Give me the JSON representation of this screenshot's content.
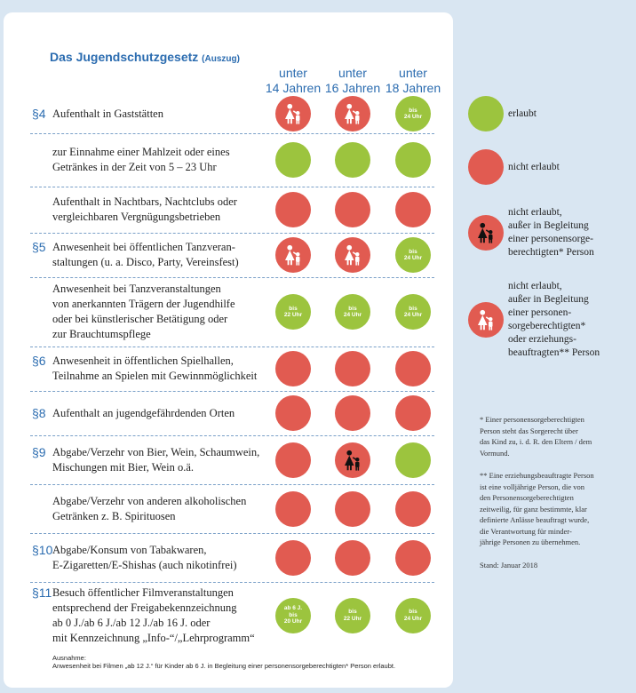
{
  "title": "Das Jugendschutzgesetz",
  "subtitle": "(Auszug)",
  "columns": [
    [
      "unter",
      "14 Jahren"
    ],
    [
      "unter",
      "16 Jahren"
    ],
    [
      "unter",
      "18 Jahren"
    ]
  ],
  "rows": [
    {
      "section": "§4",
      "lines": [
        "Aufenthalt in Gaststätten"
      ],
      "cells": [
        {
          "status": "escort-both"
        },
        {
          "status": "escort-both"
        },
        {
          "status": "allowed",
          "label": [
            "bis",
            "24 Uhr"
          ]
        }
      ]
    },
    {
      "lines": [
        "zur Einnahme einer Mahlzeit oder eines",
        "Getränkes in der Zeit von 5 – 23 Uhr"
      ],
      "cells": [
        {
          "status": "allowed"
        },
        {
          "status": "allowed"
        },
        {
          "status": "allowed"
        }
      ]
    },
    {
      "lines": [
        "Aufenthalt in Nachtbars, Nachtclubs oder",
        "vergleichbaren Vergnügungsbetrieben"
      ],
      "cells": [
        {
          "status": "denied"
        },
        {
          "status": "denied"
        },
        {
          "status": "denied"
        }
      ]
    },
    {
      "section": "§5",
      "lines": [
        "Anwesenheit bei öffentlichen Tanzveran-",
        "staltungen (u. a. Disco, Party, Vereinsfest)"
      ],
      "cells": [
        {
          "status": "escort-both"
        },
        {
          "status": "escort-both"
        },
        {
          "status": "allowed",
          "label": [
            "bis",
            "24 Uhr"
          ]
        }
      ]
    },
    {
      "lines": [
        "Anwesenheit bei Tanzveranstaltungen",
        "von anerkannten Trägern der Jugendhilfe",
        "oder bei künstlerischer Betätigung oder",
        "zur Brauchtumspflege"
      ],
      "cells": [
        {
          "status": "allowed",
          "label": [
            "bis",
            "22 Uhr"
          ]
        },
        {
          "status": "allowed",
          "label": [
            "bis",
            "24 Uhr"
          ]
        },
        {
          "status": "allowed",
          "label": [
            "bis",
            "24 Uhr"
          ]
        }
      ]
    },
    {
      "section": "§6",
      "lines": [
        "Anwesenheit in öffentlichen Spielhallen,",
        "Teilnahme an Spielen mit Gewinnmöglichkeit"
      ],
      "cells": [
        {
          "status": "denied"
        },
        {
          "status": "denied"
        },
        {
          "status": "denied"
        }
      ]
    },
    {
      "section": "§8",
      "lines": [
        "Aufenthalt an jugendgefährdenden Orten"
      ],
      "cells": [
        {
          "status": "denied"
        },
        {
          "status": "denied"
        },
        {
          "status": "denied"
        }
      ]
    },
    {
      "section": "§9",
      "lines": [
        "Abgabe/Verzehr von Bier, Wein, Schaumwein,",
        "Mischungen mit Bier, Wein o.ä."
      ],
      "cells": [
        {
          "status": "denied"
        },
        {
          "status": "escort-guardian"
        },
        {
          "status": "allowed"
        }
      ]
    },
    {
      "lines": [
        "Abgabe/Verzehr von anderen alkoholischen",
        "Getränken  z. B. Spirituosen"
      ],
      "cells": [
        {
          "status": "denied"
        },
        {
          "status": "denied"
        },
        {
          "status": "denied"
        }
      ]
    },
    {
      "section": "§10",
      "lines": [
        "Abgabe/Konsum von Tabakwaren,",
        "E-Zigaretten/E-Shishas (auch nikotinfrei)"
      ],
      "cells": [
        {
          "status": "denied"
        },
        {
          "status": "denied"
        },
        {
          "status": "denied"
        }
      ]
    },
    {
      "section": "§11",
      "lines": [
        "Besuch öffentlicher Filmveranstaltungen",
        "entsprechend der Freigabekennzeichnung",
        "ab 0 J./ab 6 J./ab 12 J./ab 16 J. oder",
        "mit Kennzeichnung „Info-“/„Lehrprogramm“"
      ],
      "cells": [
        {
          "status": "allowed",
          "label": [
            "ab 6 J.",
            "bis",
            "20 Uhr"
          ]
        },
        {
          "status": "allowed",
          "label": [
            "bis",
            "22 Uhr"
          ]
        },
        {
          "status": "allowed",
          "label": [
            "bis",
            "24 Uhr"
          ]
        }
      ]
    }
  ],
  "note": {
    "heading": "Ausnahme:",
    "text": "Anwesenheit bei Filmen „ab 12 J.“ für Kinder ab 6 J. in Begleitung einer personensorgeberechtigten* Person erlaubt."
  },
  "legend": [
    {
      "status": "allowed",
      "lines": [
        "erlaubt"
      ]
    },
    {
      "status": "denied",
      "lines": [
        "nicht erlaubt"
      ]
    },
    {
      "status": "escort-guardian",
      "lines": [
        "nicht erlaubt,",
        "außer in Begleitung",
        "einer personensorge-",
        "berechtigten* Person"
      ]
    },
    {
      "status": "escort-both",
      "lines": [
        "nicht erlaubt,",
        "außer in Begleitung",
        "einer personen-",
        "sorgeberechtigten*",
        "oder erziehungs-",
        "beauftragten** Person"
      ]
    }
  ],
  "footnotes": [
    [
      "* Einer personensorgeberechtigten",
      "Person steht das Sorgerecht über",
      "das Kind zu, i. d. R. den Eltern / dem",
      "Vormund."
    ],
    [
      "** Eine erziehungsbeauftragte Person",
      "ist eine volljährige Person, die von",
      "den Personensorgeberechtigten",
      "zeitweilig, für ganz bestimmte, klar",
      "definierte Anlässe beauftragt wurde,",
      "die Verantwortung für minder-",
      "jährige Personen zu übernehmen."
    ]
  ],
  "stand": "Stand: Januar 2018"
}
